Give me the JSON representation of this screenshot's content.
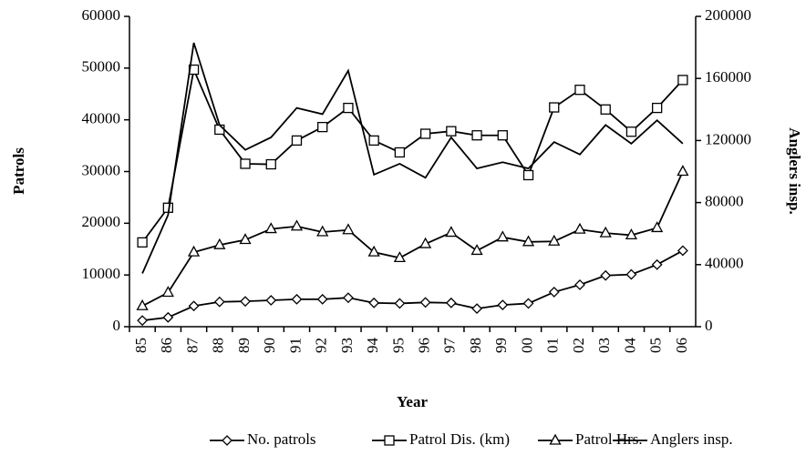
{
  "chart_data": {
    "type": "line",
    "categories": [
      "85",
      "86",
      "87",
      "88",
      "89",
      "90",
      "91",
      "92",
      "93",
      "94",
      "95",
      "96",
      "97",
      "98",
      "99",
      "00",
      "01",
      "02",
      "03",
      "04",
      "05",
      "06"
    ],
    "xlabel": "Year",
    "ylabel": "Patrols",
    "y2label": "Anglers insp.",
    "ylim": [
      0,
      60000
    ],
    "yticks": [
      0,
      10000,
      20000,
      30000,
      40000,
      50000,
      60000
    ],
    "y2lim": [
      0,
      200000
    ],
    "y2ticks": [
      0,
      40000,
      80000,
      120000,
      160000,
      200000
    ],
    "legend": "bottom",
    "series": [
      {
        "name": "No. patrols",
        "color": "#000000",
        "marker": "diamond",
        "values": [
          1200,
          1800,
          4000,
          4800,
          4900,
          5100,
          5300,
          5300,
          5600,
          4600,
          4500,
          4700,
          4600,
          3500,
          4200,
          4500,
          6700,
          8100,
          9900,
          10100,
          12000,
          14700
        ]
      },
      {
        "name": "Patrol Dis. (km)",
        "color": "#000000",
        "marker": "square",
        "values": [
          16300,
          23000,
          49700,
          38100,
          31500,
          31400,
          36000,
          38600,
          42300,
          36000,
          33700,
          37300,
          37800,
          37000,
          37000,
          29300,
          42400,
          45800,
          42000,
          37700,
          42300,
          47700
        ]
      },
      {
        "name": "Patrol Hrs.",
        "color": "#000000",
        "marker": "triangle",
        "values": [
          4000,
          6600,
          14400,
          15800,
          16800,
          18900,
          19400,
          18300,
          18700,
          14400,
          13300,
          16000,
          18200,
          14700,
          17300,
          16400,
          16500,
          18800,
          18100,
          17700,
          19100,
          30000
        ]
      },
      {
        "name": "Anglers insp.",
        "color": "#000000",
        "marker": "none",
        "axis": "y2",
        "values": [
          34300,
          72000,
          183000,
          130000,
          114000,
          122000,
          141000,
          137000,
          165000,
          98000,
          105000,
          96000,
          122000,
          102000,
          106000,
          102000,
          119000,
          111000,
          130000,
          118000,
          133000,
          118000
        ]
      }
    ]
  }
}
